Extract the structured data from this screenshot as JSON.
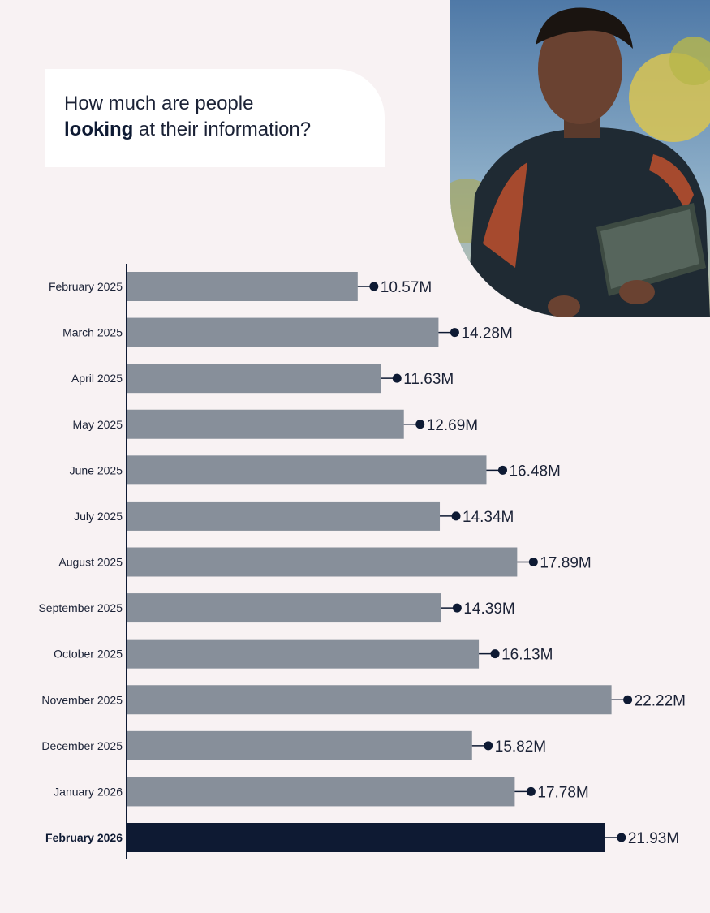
{
  "title": {
    "line1": "How much are people",
    "line2_bold": "looking",
    "line2_rest": " at their information?"
  },
  "photo": {
    "icon": "person-with-tablet-photo"
  },
  "colors": {
    "background": "#f8f2f3",
    "bar": "#878f9a",
    "bar_highlight": "#0e1a33",
    "marker": "#0e1a33",
    "axis": "#0e1a33",
    "text": "#1b2236"
  },
  "chart_data": {
    "type": "bar",
    "orientation": "horizontal",
    "title": "How much are people looking at their information?",
    "xlabel": "",
    "ylabel": "",
    "unit": "M",
    "xlim": [
      0,
      23.5
    ],
    "categories": [
      "February 2025",
      "March 2025",
      "April 2025",
      "May 2025",
      "June 2025",
      "July 2025",
      "August 2025",
      "September 2025",
      "October 2025",
      "November 2025",
      "December 2025",
      "January 2026",
      "February 2026"
    ],
    "values": [
      10.57,
      14.28,
      11.63,
      12.69,
      16.48,
      14.34,
      17.89,
      14.39,
      16.13,
      22.22,
      15.82,
      17.78,
      21.93
    ],
    "labels": [
      "10.57M",
      "14.28M",
      "11.63M",
      "12.69M",
      "16.48M",
      "14.34M",
      "17.89M",
      "14.39M",
      "16.13M",
      "22.22M",
      "15.82M",
      "17.78M",
      "21.93M"
    ],
    "highlight_index": 12
  }
}
